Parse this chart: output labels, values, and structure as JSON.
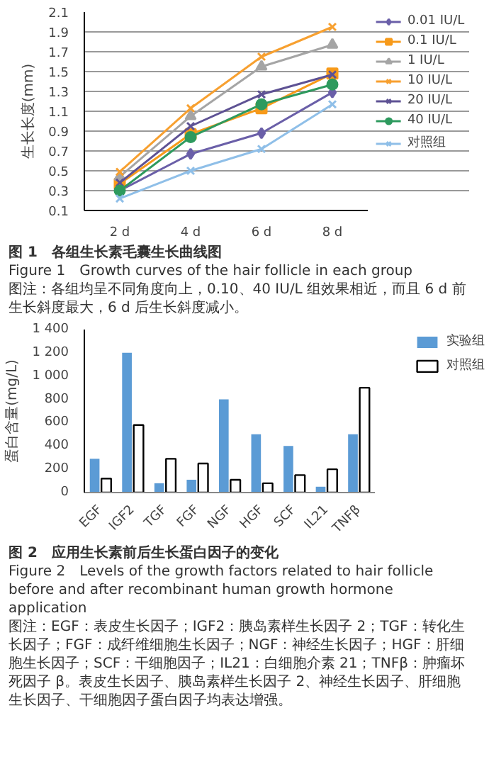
{
  "chart_data": [
    {
      "type": "line",
      "title": "图 1　各组生长素毛囊生长曲线图",
      "subtitle": "Figure 1　Growth curves of the hair follicle in each group",
      "annotations": [
        "图注：各组均呈不同角度向上，0.10、40 IU/L 组效果相近，而且 6 d 前生长斜度最大，6 d 后生长斜度减小。"
      ],
      "ylabel": "生长长度(mm)",
      "categories": [
        "2 d",
        "4 d",
        "6 d",
        "8 d"
      ],
      "ylim": [
        0.1,
        2.1
      ],
      "yticks": [
        0.1,
        0.3,
        0.5,
        0.7,
        0.9,
        1.1,
        1.3,
        1.5,
        1.7,
        1.9,
        2.1
      ],
      "grid": "y",
      "legend": "right",
      "series": [
        {
          "name": "0.01 IU/L",
          "color": "#6a5fa8",
          "marker": "diamond",
          "values": [
            0.3,
            0.67,
            0.88,
            1.29
          ]
        },
        {
          "name": "0.1 IU/L",
          "color": "#f79a1a",
          "marker": "square",
          "values": [
            0.37,
            0.87,
            1.13,
            1.48
          ]
        },
        {
          "name": "1 IU/L",
          "color": "#a5a5a5",
          "marker": "triangle",
          "values": [
            0.44,
            1.05,
            1.55,
            1.77
          ]
        },
        {
          "name": "10 IU/L",
          "color": "#f7a030",
          "marker": "cross",
          "values": [
            0.49,
            1.13,
            1.65,
            1.95
          ]
        },
        {
          "name": "20 IU/L",
          "color": "#5e5294",
          "marker": "cross",
          "values": [
            0.38,
            0.95,
            1.27,
            1.47
          ]
        },
        {
          "name": "40 IU/L",
          "color": "#2e9a5e",
          "marker": "circle",
          "values": [
            0.3,
            0.84,
            1.17,
            1.37
          ]
        },
        {
          "name": "对照组",
          "color": "#8fbfe8",
          "marker": "cross",
          "values": [
            0.22,
            0.5,
            0.72,
            1.17
          ]
        }
      ]
    },
    {
      "type": "bar",
      "title": "图 2　应用生长素前后生长蛋白因子的变化",
      "subtitle": "Figure 2　Levels of the growth factors related to hair follicle before and after recombinant human growth hormone application",
      "annotations": [
        "图注：EGF：表皮生长因子；IGF2：胰岛素样生长因子 2；TGF：转化生长因子；FGF：成纤维细胞生长因子；NGF：神经生长因子；HGF：肝细胞生长因子；SCF：干细胞因子；IL21：白细胞介素 21；TNFβ：肿瘤坏死因子 β。表皮生长因子、胰岛素样生长因子 2、神经生长因子、肝细胞生长因子、干细胞因子蛋白因子均表达增强。"
      ],
      "ylabel": "蛋白含量(mg/L)",
      "categories": [
        "EGF",
        "IGF2",
        "TGF",
        "FGF",
        "NGF",
        "HGF",
        "SCF",
        "IL21",
        "TNFβ"
      ],
      "ylim": [
        0,
        1400
      ],
      "yticks": [
        0,
        200,
        400,
        600,
        800,
        {
          "value": 1000,
          "label": "1 000"
        },
        {
          "value": 1200,
          "label": "1 200"
        },
        {
          "value": 1400,
          "label": "1 400"
        }
      ],
      "legend": "right",
      "series": [
        {
          "name": "实验组",
          "color": "#5b9bd5",
          "values": [
            290,
            1200,
            80,
            110,
            800,
            500,
            400,
            50,
            500
          ]
        },
        {
          "name": "对照组",
          "color": "#ffffff",
          "values": [
            120,
            580,
            290,
            250,
            110,
            80,
            150,
            200,
            900
          ]
        }
      ]
    }
  ]
}
